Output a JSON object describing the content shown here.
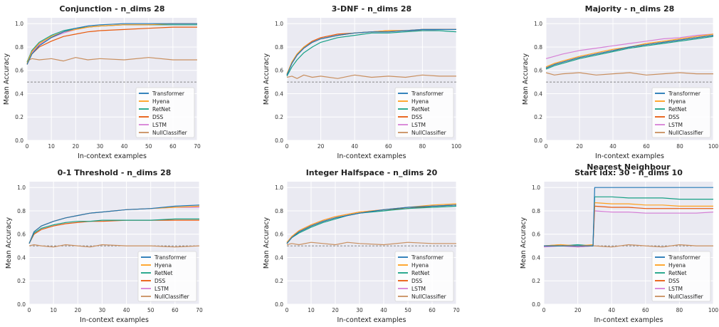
{
  "figure": {
    "ylabel": "Mean Accuracy",
    "xlabel": "In-context examples",
    "colors": {
      "Transformer": "#1f77b4",
      "Hyena": "#ff9f1c",
      "RetNet": "#16a085",
      "DSS": "#e8590c",
      "LSTM": "#d67fd6",
      "NullClassifier": "#c98f5f"
    },
    "baseline": 0.5,
    "legend_labels": [
      "Transformer",
      "Hyena",
      "RetNet",
      "DSS",
      "LSTM",
      "NullClassifier"
    ]
  },
  "chart_data": [
    {
      "type": "line",
      "title": "Conjunction - n_dims 28",
      "xlabel": "In-context examples",
      "ylabel": "Mean Accuracy",
      "xlim": [
        0,
        70
      ],
      "ylim": [
        0,
        1.05
      ],
      "xticks": [
        0,
        10,
        20,
        30,
        40,
        50,
        60,
        70
      ],
      "xtick_labels": [
        "0",
        "10",
        "20",
        "30",
        "40",
        "50",
        "60",
        "70"
      ],
      "yticks": [
        0.0,
        0.2,
        0.4,
        0.6,
        0.8,
        1.0
      ],
      "ytick_labels": [
        "0.0",
        "0.2",
        "0.4",
        "0.6",
        "0.8",
        "1.0"
      ],
      "legend_position": "lower-right",
      "baseline": 0.5,
      "x": [
        0,
        2,
        5,
        10,
        15,
        20,
        25,
        30,
        40,
        50,
        60,
        70
      ],
      "series": [
        {
          "name": "Transformer",
          "values": [
            0.65,
            0.74,
            0.81,
            0.88,
            0.93,
            0.96,
            0.98,
            0.99,
            1.0,
            1.0,
            1.0,
            1.0
          ]
        },
        {
          "name": "Hyena",
          "values": [
            0.66,
            0.76,
            0.83,
            0.89,
            0.93,
            0.95,
            0.97,
            0.98,
            0.99,
            0.99,
            1.0,
            1.0
          ]
        },
        {
          "name": "RetNet",
          "values": [
            0.67,
            0.77,
            0.84,
            0.9,
            0.94,
            0.96,
            0.97,
            0.98,
            0.99,
            0.99,
            0.99,
            0.99
          ]
        },
        {
          "name": "DSS",
          "values": [
            0.65,
            0.74,
            0.8,
            0.85,
            0.89,
            0.91,
            0.93,
            0.94,
            0.95,
            0.96,
            0.97,
            0.97
          ]
        },
        {
          "name": "LSTM",
          "values": [
            0.65,
            0.75,
            0.82,
            0.88,
            0.92,
            0.95,
            0.97,
            0.98,
            0.99,
            0.99,
            1.0,
            1.0
          ]
        },
        {
          "name": "NullClassifier",
          "values": [
            0.68,
            0.7,
            0.69,
            0.7,
            0.68,
            0.71,
            0.69,
            0.7,
            0.69,
            0.71,
            0.69,
            0.69
          ]
        }
      ]
    },
    {
      "type": "line",
      "title": "3-DNF - n_dims 28",
      "xlabel": "In-context examples",
      "ylabel": "Mean Accuracy",
      "xlim": [
        0,
        100
      ],
      "ylim": [
        0,
        1.05
      ],
      "xticks": [
        0,
        20,
        40,
        60,
        80,
        100
      ],
      "xtick_labels": [
        "0",
        "20",
        "40",
        "60",
        "80",
        "100"
      ],
      "yticks": [
        0.0,
        0.2,
        0.4,
        0.6,
        0.8,
        1.0
      ],
      "ytick_labels": [
        "0.0",
        "0.2",
        "0.4",
        "0.6",
        "0.8",
        "1.0"
      ],
      "legend_position": "lower-right",
      "baseline": 0.5,
      "x": [
        0,
        3,
        6,
        10,
        15,
        20,
        30,
        40,
        50,
        60,
        70,
        80,
        90,
        100
      ],
      "series": [
        {
          "name": "Transformer",
          "values": [
            0.56,
            0.66,
            0.73,
            0.79,
            0.84,
            0.87,
            0.9,
            0.92,
            0.93,
            0.93,
            0.94,
            0.95,
            0.95,
            0.95
          ]
        },
        {
          "name": "Hyena",
          "values": [
            0.57,
            0.67,
            0.74,
            0.8,
            0.84,
            0.87,
            0.9,
            0.92,
            0.93,
            0.94,
            0.94,
            0.95,
            0.95,
            0.95
          ]
        },
        {
          "name": "RetNet",
          "values": [
            0.55,
            0.63,
            0.69,
            0.75,
            0.8,
            0.84,
            0.88,
            0.9,
            0.92,
            0.92,
            0.93,
            0.94,
            0.94,
            0.93
          ]
        },
        {
          "name": "DSS",
          "values": [
            0.56,
            0.67,
            0.74,
            0.8,
            0.85,
            0.88,
            0.91,
            0.92,
            0.93,
            0.94,
            0.94,
            0.95,
            0.95,
            0.95
          ]
        },
        {
          "name": "LSTM",
          "values": [
            0.56,
            0.66,
            0.73,
            0.79,
            0.84,
            0.87,
            0.9,
            0.92,
            0.93,
            0.93,
            0.94,
            0.94,
            0.95,
            0.95
          ]
        },
        {
          "name": "NullClassifier",
          "values": [
            0.54,
            0.55,
            0.53,
            0.56,
            0.54,
            0.55,
            0.53,
            0.56,
            0.54,
            0.55,
            0.54,
            0.56,
            0.55,
            0.55
          ]
        }
      ]
    },
    {
      "type": "line",
      "title": "Majority - n_dims 28",
      "xlabel": "In-context examples",
      "ylabel": "Mean Accuracy",
      "xlim": [
        0,
        100
      ],
      "ylim": [
        0,
        1.05
      ],
      "xticks": [
        0,
        20,
        40,
        60,
        80,
        100
      ],
      "xtick_labels": [
        "0",
        "20",
        "40",
        "60",
        "80",
        "100"
      ],
      "yticks": [
        0.0,
        0.2,
        0.4,
        0.6,
        0.8,
        1.0
      ],
      "ytick_labels": [
        "0.0",
        "0.2",
        "0.4",
        "0.6",
        "0.8",
        "1.0"
      ],
      "legend_position": "lower-right",
      "baseline": 0.5,
      "x": [
        0,
        5,
        10,
        20,
        30,
        40,
        50,
        60,
        70,
        80,
        90,
        100
      ],
      "series": [
        {
          "name": "Transformer",
          "values": [
            0.62,
            0.65,
            0.67,
            0.71,
            0.74,
            0.77,
            0.8,
            0.82,
            0.84,
            0.86,
            0.88,
            0.9
          ]
        },
        {
          "name": "Hyena",
          "values": [
            0.63,
            0.66,
            0.68,
            0.72,
            0.75,
            0.78,
            0.8,
            0.83,
            0.85,
            0.87,
            0.89,
            0.91
          ]
        },
        {
          "name": "RetNet",
          "values": [
            0.61,
            0.64,
            0.66,
            0.7,
            0.73,
            0.76,
            0.79,
            0.81,
            0.83,
            0.85,
            0.87,
            0.89
          ]
        },
        {
          "name": "DSS",
          "values": [
            0.62,
            0.65,
            0.67,
            0.71,
            0.74,
            0.77,
            0.8,
            0.82,
            0.84,
            0.86,
            0.88,
            0.9
          ]
        },
        {
          "name": "LSTM",
          "values": [
            0.7,
            0.72,
            0.74,
            0.77,
            0.79,
            0.81,
            0.83,
            0.85,
            0.87,
            0.88,
            0.9,
            0.91
          ]
        },
        {
          "name": "NullClassifier",
          "values": [
            0.58,
            0.56,
            0.57,
            0.58,
            0.56,
            0.57,
            0.58,
            0.56,
            0.57,
            0.58,
            0.57,
            0.57
          ]
        }
      ]
    },
    {
      "type": "line",
      "title": "0-1 Threshold - n_dims 28",
      "xlabel": "In-context examples",
      "ylabel": "Mean Accuracy",
      "xlim": [
        0,
        70
      ],
      "ylim": [
        0,
        1.05
      ],
      "xticks": [
        0,
        10,
        20,
        30,
        40,
        50,
        60,
        70
      ],
      "xtick_labels": [
        "0",
        "10",
        "20",
        "30",
        "40",
        "50",
        "60",
        "70"
      ],
      "yticks": [
        0.0,
        0.2,
        0.4,
        0.6,
        0.8,
        1.0
      ],
      "ytick_labels": [
        "0.0",
        "0.2",
        "0.4",
        "0.6",
        "0.8",
        "1.0"
      ],
      "legend_position": "lower-right",
      "baseline": 0.5,
      "x": [
        0,
        2,
        5,
        10,
        15,
        20,
        25,
        30,
        40,
        50,
        60,
        70
      ],
      "series": [
        {
          "name": "Transformer",
          "values": [
            0.52,
            0.62,
            0.67,
            0.71,
            0.74,
            0.76,
            0.78,
            0.79,
            0.81,
            0.82,
            0.84,
            0.85
          ]
        },
        {
          "name": "Hyena",
          "values": [
            0.52,
            0.62,
            0.67,
            0.71,
            0.74,
            0.76,
            0.78,
            0.79,
            0.81,
            0.82,
            0.83,
            0.84
          ]
        },
        {
          "name": "RetNet",
          "values": [
            0.52,
            0.61,
            0.65,
            0.68,
            0.7,
            0.71,
            0.71,
            0.72,
            0.72,
            0.72,
            0.73,
            0.73
          ]
        },
        {
          "name": "DSS",
          "values": [
            0.52,
            0.6,
            0.64,
            0.67,
            0.69,
            0.7,
            0.71,
            0.71,
            0.72,
            0.72,
            0.72,
            0.72
          ]
        },
        {
          "name": "LSTM",
          "values": [
            0.52,
            0.62,
            0.67,
            0.71,
            0.74,
            0.76,
            0.78,
            0.79,
            0.81,
            0.82,
            0.83,
            0.83
          ]
        },
        {
          "name": "NullClassifier",
          "values": [
            0.5,
            0.51,
            0.5,
            0.49,
            0.51,
            0.5,
            0.49,
            0.51,
            0.5,
            0.5,
            0.49,
            0.5
          ]
        }
      ]
    },
    {
      "type": "line",
      "title": "Integer Halfspace - n_dims 20",
      "xlabel": "In-context examples",
      "ylabel": "Mean Accuracy",
      "xlim": [
        0,
        70
      ],
      "ylim": [
        0,
        1.05
      ],
      "xticks": [
        0,
        10,
        20,
        30,
        40,
        50,
        60,
        70
      ],
      "xtick_labels": [
        "0",
        "10",
        "20",
        "30",
        "40",
        "50",
        "60",
        "70"
      ],
      "yticks": [
        0.0,
        0.2,
        0.4,
        0.6,
        0.8,
        1.0
      ],
      "ytick_labels": [
        "0.0",
        "0.2",
        "0.4",
        "0.6",
        "0.8",
        "1.0"
      ],
      "legend_position": "lower-right",
      "baseline": 0.5,
      "x": [
        0,
        2,
        5,
        10,
        15,
        20,
        25,
        30,
        40,
        50,
        60,
        70
      ],
      "series": [
        {
          "name": "Transformer",
          "values": [
            0.52,
            0.57,
            0.62,
            0.67,
            0.71,
            0.74,
            0.76,
            0.78,
            0.81,
            0.83,
            0.84,
            0.85
          ]
        },
        {
          "name": "Hyena",
          "values": [
            0.53,
            0.58,
            0.63,
            0.68,
            0.72,
            0.75,
            0.77,
            0.79,
            0.81,
            0.83,
            0.85,
            0.86
          ]
        },
        {
          "name": "RetNet",
          "values": [
            0.52,
            0.57,
            0.61,
            0.66,
            0.7,
            0.73,
            0.76,
            0.78,
            0.8,
            0.82,
            0.83,
            0.84
          ]
        },
        {
          "name": "DSS",
          "values": [
            0.52,
            0.57,
            0.62,
            0.67,
            0.71,
            0.74,
            0.76,
            0.78,
            0.81,
            0.82,
            0.84,
            0.85
          ]
        },
        {
          "name": "LSTM",
          "values": [
            0.53,
            0.58,
            0.63,
            0.68,
            0.72,
            0.75,
            0.77,
            0.79,
            0.81,
            0.83,
            0.84,
            0.85
          ]
        },
        {
          "name": "NullClassifier",
          "values": [
            0.51,
            0.52,
            0.51,
            0.53,
            0.52,
            0.51,
            0.53,
            0.52,
            0.51,
            0.53,
            0.52,
            0.52
          ]
        }
      ]
    },
    {
      "type": "line",
      "title": "Start idx: 30 - n_dims 10",
      "title_above": "Nearest Neighbour",
      "xlabel": "In-context examples",
      "ylabel": "Mean Accuracy",
      "xlim": [
        0,
        100
      ],
      "ylim": [
        0,
        1.05
      ],
      "xticks": [
        0,
        20,
        40,
        60,
        80,
        100
      ],
      "xtick_labels": [
        "0",
        "20",
        "40",
        "60",
        "80",
        "100"
      ],
      "yticks": [
        0.0,
        0.2,
        0.4,
        0.6,
        0.8,
        1.0
      ],
      "ytick_labels": [
        "0.0",
        "0.2",
        "0.4",
        "0.6",
        "0.8",
        "1.0"
      ],
      "legend_position": "lower-right",
      "baseline": 0.5,
      "x": [
        0,
        10,
        20,
        29,
        30,
        40,
        50,
        60,
        70,
        80,
        90,
        100
      ],
      "series": [
        {
          "name": "Transformer",
          "values": [
            0.5,
            0.5,
            0.5,
            0.5,
            1.0,
            1.0,
            1.0,
            1.0,
            1.0,
            1.0,
            1.0,
            1.0
          ]
        },
        {
          "name": "Hyena",
          "values": [
            0.5,
            0.51,
            0.5,
            0.51,
            0.87,
            0.86,
            0.86,
            0.85,
            0.85,
            0.84,
            0.84,
            0.84
          ]
        },
        {
          "name": "RetNet",
          "values": [
            0.5,
            0.5,
            0.51,
            0.5,
            0.92,
            0.92,
            0.91,
            0.91,
            0.91,
            0.9,
            0.9,
            0.9
          ]
        },
        {
          "name": "DSS",
          "values": [
            0.5,
            0.5,
            0.5,
            0.5,
            0.84,
            0.83,
            0.83,
            0.82,
            0.82,
            0.82,
            0.82,
            0.82
          ]
        },
        {
          "name": "LSTM",
          "values": [
            0.49,
            0.5,
            0.49,
            0.5,
            0.8,
            0.79,
            0.79,
            0.78,
            0.78,
            0.78,
            0.78,
            0.79
          ]
        },
        {
          "name": "NullClassifier",
          "values": [
            0.5,
            0.51,
            0.49,
            0.5,
            0.5,
            0.49,
            0.51,
            0.5,
            0.49,
            0.51,
            0.5,
            0.5
          ]
        }
      ]
    }
  ]
}
